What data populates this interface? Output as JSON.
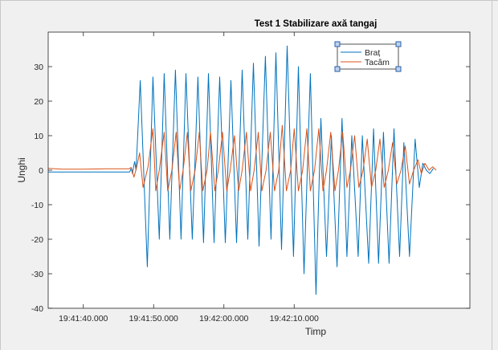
{
  "chart_data": {
    "type": "line",
    "title": "Test 1 Stabilizare axă tangaj",
    "xlabel": "Timp",
    "ylabel": "Unghi",
    "xlim": [
      -5,
      55
    ],
    "ylim": [
      -40,
      40
    ],
    "x_ticks": [
      0,
      10,
      20,
      30
    ],
    "x_tick_labels": [
      "19:41:40.000",
      "19:41:50.000",
      "19:42:00.000",
      "19:42:10.000"
    ],
    "y_ticks": [
      -40,
      -30,
      -20,
      -10,
      0,
      10,
      20,
      30
    ],
    "y_tick_labels": [
      "-40",
      "-30",
      "-20",
      "-10",
      "0",
      "10",
      "20",
      "30"
    ],
    "grid": false,
    "legend_position": "top-right",
    "series": [
      {
        "name": "Braț",
        "color": "#0072BD",
        "points": [
          [
            -5,
            -0.5
          ],
          [
            6.6,
            -0.5
          ],
          [
            6.8,
            0.5
          ],
          [
            7.0,
            -1
          ],
          [
            7.1,
            0.5
          ],
          [
            7.3,
            2.5
          ],
          [
            7.5,
            0
          ],
          [
            8.1,
            26
          ],
          [
            9.1,
            -28
          ],
          [
            9.9,
            27
          ],
          [
            10.8,
            -20
          ],
          [
            11.5,
            28
          ],
          [
            12.3,
            -20
          ],
          [
            13.1,
            29
          ],
          [
            13.9,
            -20
          ],
          [
            14.6,
            28
          ],
          [
            15.5,
            -20
          ],
          [
            16.3,
            27
          ],
          [
            17.1,
            -21
          ],
          [
            17.8,
            28
          ],
          [
            18.6,
            -21
          ],
          [
            19.4,
            27
          ],
          [
            20.2,
            -21
          ],
          [
            21.0,
            26
          ],
          [
            21.8,
            -21
          ],
          [
            22.6,
            29
          ],
          [
            23.4,
            -20
          ],
          [
            24.2,
            31
          ],
          [
            25.0,
            -22
          ],
          [
            25.9,
            33
          ],
          [
            26.7,
            -20
          ],
          [
            27.4,
            34
          ],
          [
            28.2,
            -23
          ],
          [
            29.0,
            36
          ],
          [
            29.9,
            -25
          ],
          [
            30.6,
            30
          ],
          [
            31.4,
            -30
          ],
          [
            32.3,
            28
          ],
          [
            33.1,
            -36
          ],
          [
            33.8,
            15
          ],
          [
            34.6,
            -25
          ],
          [
            35.3,
            10
          ],
          [
            36.1,
            -28
          ],
          [
            36.8,
            15
          ],
          [
            37.5,
            -25
          ],
          [
            38.2,
            10
          ],
          [
            39.1,
            -25
          ],
          [
            39.7,
            10
          ],
          [
            40.6,
            -27
          ],
          [
            41.3,
            12
          ],
          [
            42.0,
            -27
          ],
          [
            42.7,
            11
          ],
          [
            43.5,
            -27
          ],
          [
            44.2,
            12
          ],
          [
            45.0,
            -25
          ],
          [
            45.6,
            8
          ],
          [
            46.4,
            -25
          ],
          [
            47.2,
            9
          ],
          [
            47.8,
            -5
          ],
          [
            48.3,
            2
          ],
          [
            48.8,
            0
          ],
          [
            49.3,
            -1
          ],
          [
            49.8,
            0.5
          ]
        ]
      },
      {
        "name": "Tacâm",
        "color": "#D95319",
        "points": [
          [
            -5,
            0.5
          ],
          [
            -3,
            0.3
          ],
          [
            0,
            0.3
          ],
          [
            3,
            0.4
          ],
          [
            6.5,
            0.4
          ],
          [
            6.8,
            0.8
          ],
          [
            7.2,
            -2
          ],
          [
            7.6,
            1
          ],
          [
            8.0,
            5
          ],
          [
            8.5,
            -5
          ],
          [
            9.2,
            1
          ],
          [
            9.9,
            12
          ],
          [
            10.3,
            -6
          ],
          [
            10.8,
            0
          ],
          [
            11.5,
            11
          ],
          [
            12.0,
            -6
          ],
          [
            12.6,
            0
          ],
          [
            13.2,
            11
          ],
          [
            13.7,
            -6
          ],
          [
            14.2,
            0
          ],
          [
            14.8,
            11
          ],
          [
            15.3,
            -6
          ],
          [
            15.9,
            0
          ],
          [
            16.5,
            11
          ],
          [
            17.0,
            -6
          ],
          [
            17.6,
            0
          ],
          [
            18.1,
            11
          ],
          [
            18.7,
            -6
          ],
          [
            19.2,
            0
          ],
          [
            19.8,
            11
          ],
          [
            20.4,
            -6
          ],
          [
            20.9,
            0
          ],
          [
            21.5,
            10
          ],
          [
            22.1,
            -6
          ],
          [
            22.6,
            0
          ],
          [
            23.2,
            11
          ],
          [
            23.8,
            -6
          ],
          [
            24.3,
            0
          ],
          [
            24.9,
            11
          ],
          [
            25.4,
            -6
          ],
          [
            26.0,
            0
          ],
          [
            26.6,
            11
          ],
          [
            27.2,
            -6
          ],
          [
            27.8,
            0
          ],
          [
            28.3,
            13
          ],
          [
            28.9,
            -6
          ],
          [
            29.5,
            0
          ],
          [
            30.0,
            12
          ],
          [
            30.6,
            -6
          ],
          [
            31.2,
            0
          ],
          [
            31.8,
            12
          ],
          [
            32.3,
            -6
          ],
          [
            32.9,
            0
          ],
          [
            33.5,
            12
          ],
          [
            34.1,
            -6
          ],
          [
            34.6,
            0
          ],
          [
            35.2,
            11
          ],
          [
            35.8,
            -6
          ],
          [
            36.3,
            0
          ],
          [
            36.9,
            11
          ],
          [
            37.5,
            -5
          ],
          [
            38.0,
            0
          ],
          [
            38.6,
            10
          ],
          [
            39.2,
            -5
          ],
          [
            39.8,
            0
          ],
          [
            40.4,
            9
          ],
          [
            41.0,
            -5
          ],
          [
            41.6,
            0
          ],
          [
            42.2,
            9
          ],
          [
            42.8,
            -5
          ],
          [
            43.4,
            0
          ],
          [
            44.0,
            8
          ],
          [
            44.6,
            -4
          ],
          [
            45.2,
            0
          ],
          [
            45.8,
            7
          ],
          [
            46.4,
            -4
          ],
          [
            47.0,
            0
          ],
          [
            47.6,
            3
          ],
          [
            48.1,
            -1
          ],
          [
            48.6,
            2
          ],
          [
            49.2,
            0
          ],
          [
            49.7,
            1
          ],
          [
            50.2,
            0
          ]
        ]
      }
    ]
  }
}
